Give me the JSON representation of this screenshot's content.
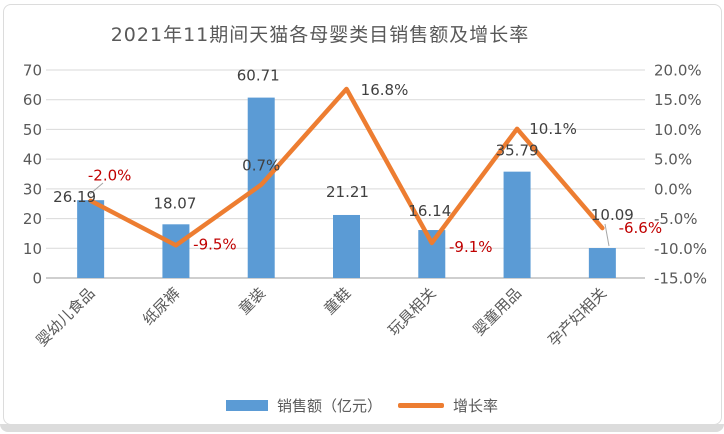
{
  "title": "2021年11期间天猫各母婴类目销售额及增长率",
  "legend": {
    "sales_label": "销售额（亿元）",
    "growth_label": "增长率"
  },
  "colors": {
    "bar": "#5B9BD5",
    "line": "#ED7D31",
    "label_dark": "#404040",
    "label_negative": "#C00000",
    "axis_text": "#595959",
    "gridline": "#D9D9D9",
    "axis_line": "#BFBFBF",
    "leader_line": "#A6A6A6"
  },
  "chart_data": {
    "type": "bar",
    "combo": "bar+line",
    "title": "2021年11期间天猫各母婴类目销售额及增长率",
    "categories": [
      "婴幼儿食品",
      "纸尿裤",
      "童装",
      "童鞋",
      "玩具相关",
      "婴童用品",
      "孕产妇相关"
    ],
    "series": [
      {
        "name": "销售额（亿元）",
        "type": "bar",
        "axis": "left",
        "unit": "亿元",
        "values": [
          26.19,
          18.07,
          60.71,
          21.21,
          16.14,
          35.79,
          10.09
        ],
        "value_labels": [
          "26.19",
          "18.07",
          "60.71",
          "21.21",
          "16.14",
          "35.79",
          "10.09"
        ]
      },
      {
        "name": "增长率",
        "type": "line",
        "axis": "right",
        "unit": "%",
        "values": [
          -2.0,
          -9.5,
          0.7,
          16.8,
          -9.1,
          10.1,
          -6.6
        ],
        "value_labels": [
          "-2.0%",
          "-9.5%",
          "0.7%",
          "16.8%",
          "-9.1%",
          "10.1%",
          "-6.6%"
        ]
      }
    ],
    "left_axis": {
      "min": 0,
      "max": 70,
      "step": 10,
      "tick_labels": [
        "0",
        "10",
        "20",
        "30",
        "40",
        "50",
        "60",
        "70"
      ]
    },
    "right_axis": {
      "min": -15,
      "max": 20,
      "step": 5,
      "tick_labels": [
        "-15.0%",
        "-10.0%",
        "-5.0%",
        "0.0%",
        "5.0%",
        "10.0%",
        "15.0%",
        "20.0%"
      ]
    },
    "grid": true,
    "legend_position": "bottom"
  }
}
